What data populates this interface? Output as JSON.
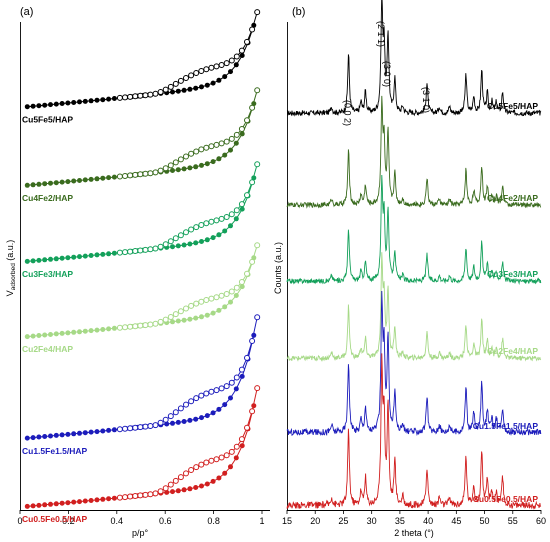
{
  "panels": {
    "a": "(a)",
    "b": "(b)"
  },
  "chart_data": [
    {
      "type": "scatter",
      "panel": "(a)",
      "xlabel": "p/p°",
      "ylabel": "V",
      "ylabel_sub": "adsorbed",
      "ylabel_unit": " (a.u.)",
      "xlim": [
        0,
        1
      ],
      "xticks": [
        0,
        0.2,
        0.4,
        0.6,
        0.8,
        1
      ],
      "xtick_labels": [
        "0",
        "0.2",
        "0.4",
        "0.6",
        "0.8",
        "1"
      ],
      "y_units": "stacked arbitrary units (0–100 per panel height)",
      "series": [
        {
          "name": "Cu5Fe5/HAP",
          "color": "#000000",
          "baseline": 82.5,
          "rise": 18.5
        },
        {
          "name": "Cu4Fe2/HAP",
          "color": "#3a6b1e",
          "baseline": 66.4,
          "rise": 18.6
        },
        {
          "name": "Cu3Fe3/HAP",
          "color": "#13a05a",
          "baseline": 50.8,
          "rise": 19.2
        },
        {
          "name": "Cu2Fe4/HAP",
          "color": "#a6d987",
          "baseline": 35.4,
          "rise": 17.6
        },
        {
          "name": "Cu1.5Fe1.5/HAP",
          "color": "#1c1cbb",
          "baseline": 14.6,
          "rise": 25.6
        },
        {
          "name": "Cu0.5Fe0.5/HAP",
          "color": "#d11f1f",
          "baseline": 0.6,
          "rise": 24.9
        }
      ]
    },
    {
      "type": "line",
      "panel": "(b)",
      "xlabel": "2 theta (°)",
      "ylabel": "Counts (a.u.)",
      "xlim": [
        15,
        60
      ],
      "xticks": [
        15,
        20,
        25,
        30,
        35,
        40,
        45,
        50,
        55,
        60
      ],
      "xtick_labels": [
        "15",
        "20",
        "25",
        "30",
        "35",
        "40",
        "45",
        "50",
        "55",
        "60"
      ],
      "y_units": "stacked arbitrary units (0–100 per panel height)",
      "peak_annotations": [
        {
          "label": "(0 0 2)",
          "x": 25.9
        },
        {
          "label": "(2 1 1)",
          "x": 31.8
        },
        {
          "label": "(3 0 0)",
          "x": 32.9
        },
        {
          "label": "(3 1 0)",
          "x": 39.8
        }
      ],
      "peaks": [
        [
          22.9,
          0.06
        ],
        [
          25.9,
          0.55
        ],
        [
          28.1,
          0.1
        ],
        [
          28.9,
          0.2
        ],
        [
          31.8,
          1.0
        ],
        [
          32.2,
          0.6
        ],
        [
          32.9,
          0.72
        ],
        [
          34.1,
          0.32
        ],
        [
          35.5,
          0.06
        ],
        [
          39.8,
          0.28
        ],
        [
          42.0,
          0.06
        ],
        [
          43.8,
          0.06
        ],
        [
          46.7,
          0.36
        ],
        [
          48.1,
          0.15
        ],
        [
          49.5,
          0.4
        ],
        [
          50.5,
          0.18
        ],
        [
          51.3,
          0.1
        ],
        [
          52.1,
          0.1
        ],
        [
          53.2,
          0.2
        ]
      ],
      "series": [
        {
          "name": "Cu5Fe5/HAP",
          "color": "#000000",
          "baseline": 80.9,
          "scale": 22.0
        },
        {
          "name": "Cu4Fe2/HAP",
          "color": "#3a6b1e",
          "baseline": 62.1,
          "scale": 20.0
        },
        {
          "name": "Cu3Fe3/HAP",
          "color": "#13a05a",
          "baseline": 46.5,
          "scale": 19.5
        },
        {
          "name": "Cu2Fe4/HAP",
          "color": "#a6d987",
          "baseline": 30.7,
          "scale": 19.5
        },
        {
          "name": "Cu1.5Fe1.5/HAP",
          "color": "#1c1cbb",
          "baseline": 15.4,
          "scale": 26.0
        },
        {
          "name": "Cu0.5Fe0.5/HAP",
          "color": "#d11f1f",
          "baseline": 0.4,
          "scale": 28.0
        }
      ]
    }
  ]
}
